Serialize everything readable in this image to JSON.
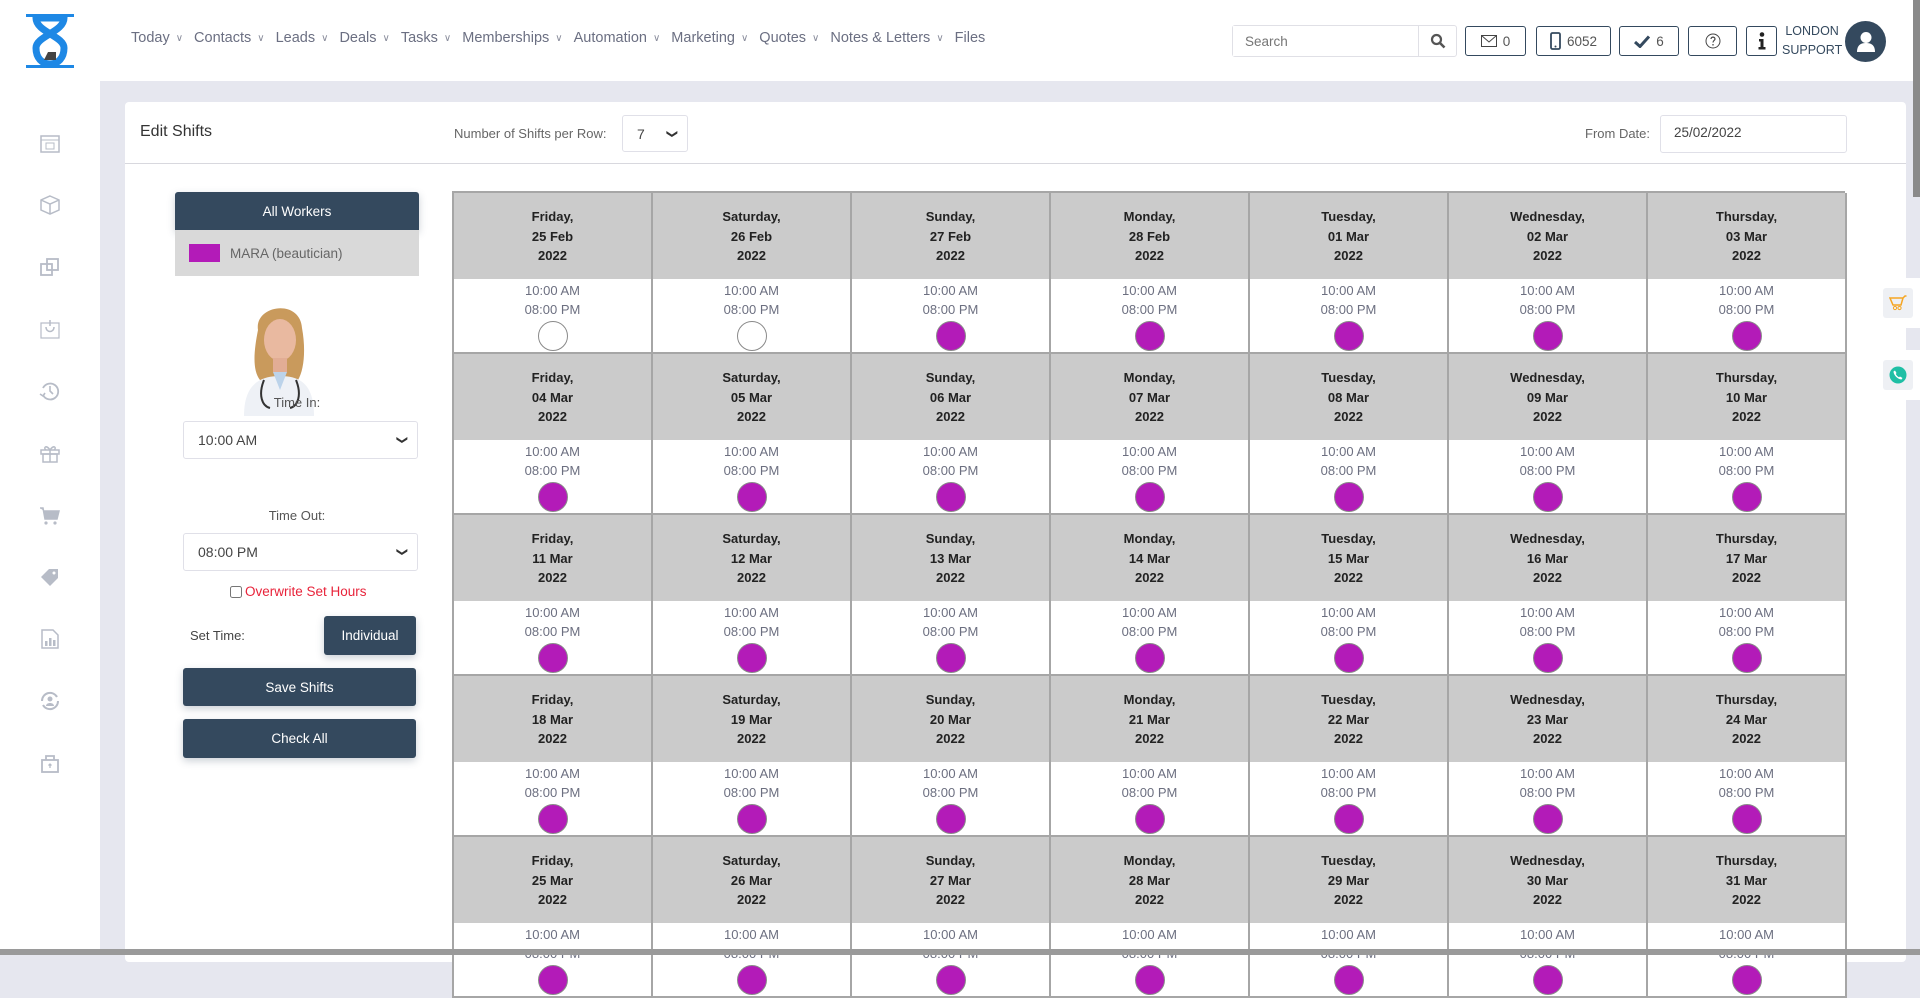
{
  "app": {
    "logo": "hourglass-logo"
  },
  "nav": [
    {
      "label": "Today",
      "dropdown": true
    },
    {
      "label": "Contacts",
      "dropdown": true
    },
    {
      "label": "Leads",
      "dropdown": true
    },
    {
      "label": "Deals",
      "dropdown": true
    },
    {
      "label": "Tasks",
      "dropdown": true
    },
    {
      "label": "Memberships",
      "dropdown": true
    },
    {
      "label": "Automation",
      "dropdown": true
    },
    {
      "label": "Marketing",
      "dropdown": true
    },
    {
      "label": "Quotes",
      "dropdown": true
    },
    {
      "label": "Notes & Letters",
      "dropdown": true
    },
    {
      "label": "Files",
      "dropdown": false
    }
  ],
  "search": {
    "placeholder": "Search"
  },
  "toolbar": {
    "mail_count": "0",
    "phone_count": "6052",
    "tasks_count": "6",
    "user_line1": "LONDON",
    "user_line2": "SUPPORT"
  },
  "sidebar_icons": [
    "calendar-icon",
    "box-icon",
    "copy-icon",
    "basket-icon",
    "history-icon",
    "gift-icon",
    "cart-icon",
    "tag-icon",
    "report-icon",
    "user-sync-icon",
    "lock-icon"
  ],
  "page": {
    "title": "Edit Shifts",
    "shifts_per_row_label": "Number of Shifts per Row:",
    "shifts_per_row": "7",
    "from_date_label": "From Date:",
    "from_date": "25/02/2022"
  },
  "panel": {
    "all_workers": "All Workers",
    "worker": {
      "name": "MARA (beautician)",
      "color": "#b31bb8"
    },
    "time_in_label": "Time In:",
    "time_in": "10:00 AM",
    "time_out_label": "Time Out:",
    "time_out": "08:00 PM",
    "overwrite_label": "Overwrite Set Hours",
    "overwrite_checked": false,
    "set_time_label": "Set Time:",
    "individual": "Individual",
    "save": "Save Shifts",
    "check_all": "Check All"
  },
  "colors": {
    "primary": "#34495e",
    "shift_on": "#b31bb8",
    "warning": "#e8233a"
  },
  "shifts": [
    {
      "day": "Friday,",
      "date": "25 Feb",
      "year": "2022",
      "in": "10:00 AM",
      "out": "08:00 PM",
      "on": false
    },
    {
      "day": "Saturday,",
      "date": "26 Feb",
      "year": "2022",
      "in": "10:00 AM",
      "out": "08:00 PM",
      "on": false
    },
    {
      "day": "Sunday,",
      "date": "27 Feb",
      "year": "2022",
      "in": "10:00 AM",
      "out": "08:00 PM",
      "on": true
    },
    {
      "day": "Monday,",
      "date": "28 Feb",
      "year": "2022",
      "in": "10:00 AM",
      "out": "08:00 PM",
      "on": true
    },
    {
      "day": "Tuesday,",
      "date": "01 Mar",
      "year": "2022",
      "in": "10:00 AM",
      "out": "08:00 PM",
      "on": true
    },
    {
      "day": "Wednesday,",
      "date": "02 Mar",
      "year": "2022",
      "in": "10:00 AM",
      "out": "08:00 PM",
      "on": true
    },
    {
      "day": "Thursday,",
      "date": "03 Mar",
      "year": "2022",
      "in": "10:00 AM",
      "out": "08:00 PM",
      "on": true
    },
    {
      "day": "Friday,",
      "date": "04 Mar",
      "year": "2022",
      "in": "10:00 AM",
      "out": "08:00 PM",
      "on": true
    },
    {
      "day": "Saturday,",
      "date": "05 Mar",
      "year": "2022",
      "in": "10:00 AM",
      "out": "08:00 PM",
      "on": true
    },
    {
      "day": "Sunday,",
      "date": "06 Mar",
      "year": "2022",
      "in": "10:00 AM",
      "out": "08:00 PM",
      "on": true
    },
    {
      "day": "Monday,",
      "date": "07 Mar",
      "year": "2022",
      "in": "10:00 AM",
      "out": "08:00 PM",
      "on": true
    },
    {
      "day": "Tuesday,",
      "date": "08 Mar",
      "year": "2022",
      "in": "10:00 AM",
      "out": "08:00 PM",
      "on": true
    },
    {
      "day": "Wednesday,",
      "date": "09 Mar",
      "year": "2022",
      "in": "10:00 AM",
      "out": "08:00 PM",
      "on": true
    },
    {
      "day": "Thursday,",
      "date": "10 Mar",
      "year": "2022",
      "in": "10:00 AM",
      "out": "08:00 PM",
      "on": true
    },
    {
      "day": "Friday,",
      "date": "11 Mar",
      "year": "2022",
      "in": "10:00 AM",
      "out": "08:00 PM",
      "on": true
    },
    {
      "day": "Saturday,",
      "date": "12 Mar",
      "year": "2022",
      "in": "10:00 AM",
      "out": "08:00 PM",
      "on": true
    },
    {
      "day": "Sunday,",
      "date": "13 Mar",
      "year": "2022",
      "in": "10:00 AM",
      "out": "08:00 PM",
      "on": true
    },
    {
      "day": "Monday,",
      "date": "14 Mar",
      "year": "2022",
      "in": "10:00 AM",
      "out": "08:00 PM",
      "on": true
    },
    {
      "day": "Tuesday,",
      "date": "15 Mar",
      "year": "2022",
      "in": "10:00 AM",
      "out": "08:00 PM",
      "on": true
    },
    {
      "day": "Wednesday,",
      "date": "16 Mar",
      "year": "2022",
      "in": "10:00 AM",
      "out": "08:00 PM",
      "on": true
    },
    {
      "day": "Thursday,",
      "date": "17 Mar",
      "year": "2022",
      "in": "10:00 AM",
      "out": "08:00 PM",
      "on": true
    },
    {
      "day": "Friday,",
      "date": "18 Mar",
      "year": "2022",
      "in": "10:00 AM",
      "out": "08:00 PM",
      "on": true
    },
    {
      "day": "Saturday,",
      "date": "19 Mar",
      "year": "2022",
      "in": "10:00 AM",
      "out": "08:00 PM",
      "on": true
    },
    {
      "day": "Sunday,",
      "date": "20 Mar",
      "year": "2022",
      "in": "10:00 AM",
      "out": "08:00 PM",
      "on": true
    },
    {
      "day": "Monday,",
      "date": "21 Mar",
      "year": "2022",
      "in": "10:00 AM",
      "out": "08:00 PM",
      "on": true
    },
    {
      "day": "Tuesday,",
      "date": "22 Mar",
      "year": "2022",
      "in": "10:00 AM",
      "out": "08:00 PM",
      "on": true
    },
    {
      "day": "Wednesday,",
      "date": "23 Mar",
      "year": "2022",
      "in": "10:00 AM",
      "out": "08:00 PM",
      "on": true
    },
    {
      "day": "Thursday,",
      "date": "24 Mar",
      "year": "2022",
      "in": "10:00 AM",
      "out": "08:00 PM",
      "on": true
    },
    {
      "day": "Friday,",
      "date": "25 Mar",
      "year": "2022",
      "in": "10:00 AM",
      "out": "08:00 PM",
      "on": true
    },
    {
      "day": "Saturday,",
      "date": "26 Mar",
      "year": "2022",
      "in": "10:00 AM",
      "out": "08:00 PM",
      "on": true
    },
    {
      "day": "Sunday,",
      "date": "27 Mar",
      "year": "2022",
      "in": "10:00 AM",
      "out": "08:00 PM",
      "on": true
    },
    {
      "day": "Monday,",
      "date": "28 Mar",
      "year": "2022",
      "in": "10:00 AM",
      "out": "08:00 PM",
      "on": true
    },
    {
      "day": "Tuesday,",
      "date": "29 Mar",
      "year": "2022",
      "in": "10:00 AM",
      "out": "08:00 PM",
      "on": true
    },
    {
      "day": "Wednesday,",
      "date": "30 Mar",
      "year": "2022",
      "in": "10:00 AM",
      "out": "08:00 PM",
      "on": true
    },
    {
      "day": "Thursday,",
      "date": "31 Mar",
      "year": "2022",
      "in": "10:00 AM",
      "out": "08:00 PM",
      "on": true
    }
  ]
}
